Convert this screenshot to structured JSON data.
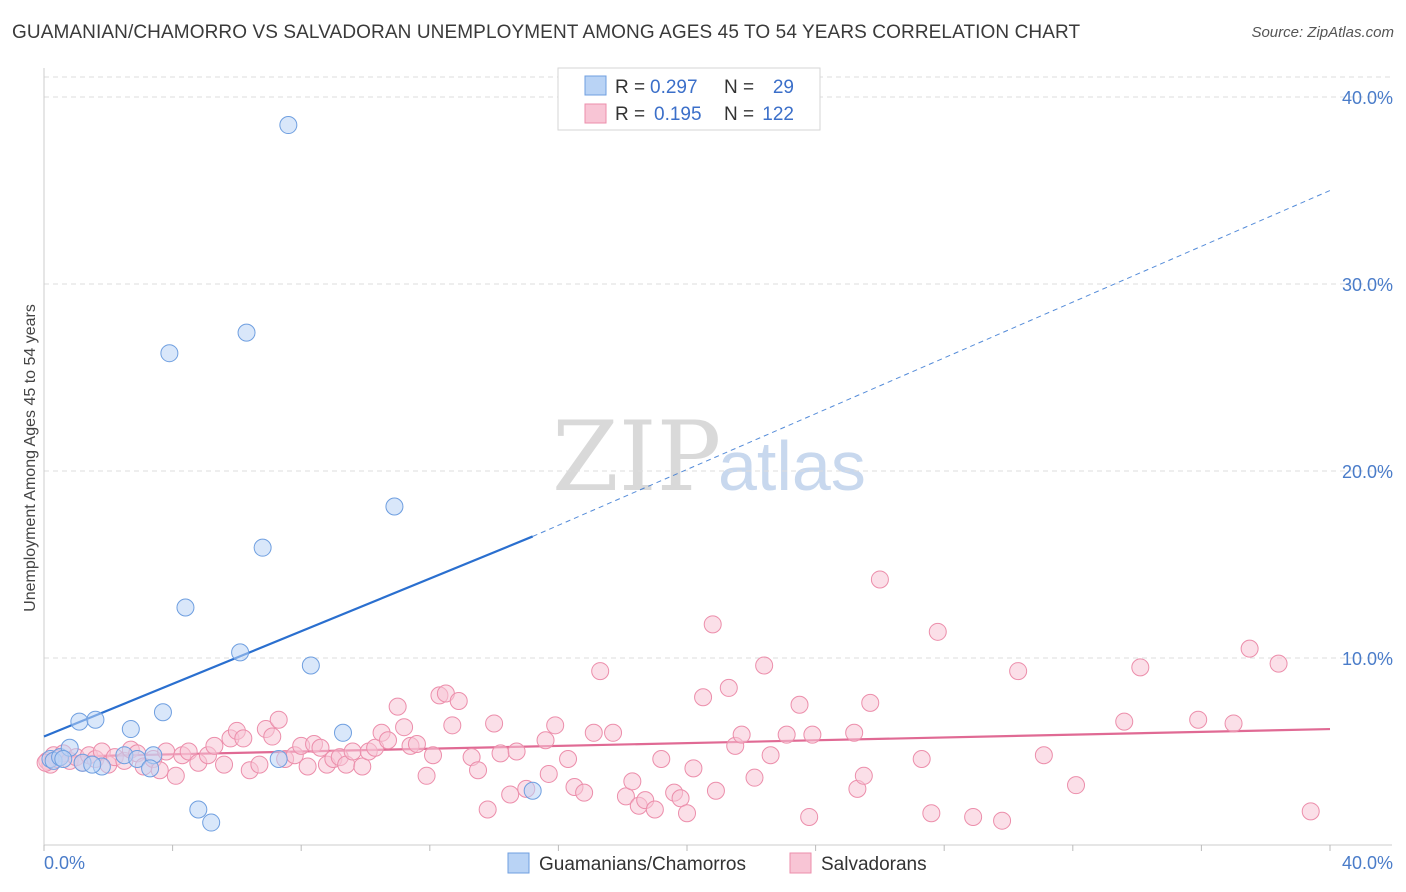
{
  "title": "GUAMANIAN/CHAMORRO VS SALVADORAN UNEMPLOYMENT AMONG AGES 45 TO 54 YEARS CORRELATION CHART",
  "source": "Source: ZipAtlas.com",
  "watermark": {
    "zip": "ZIP",
    "atlas": "atlas"
  },
  "colors": {
    "blue_fill": "#b9d3f5",
    "blue_stroke": "#6f9fe0",
    "blue_line": "#2a6fcf",
    "pink_fill": "#f8c5d5",
    "pink_stroke": "#ec8eab",
    "pink_line": "#e06a94",
    "grid": "#dddddd",
    "tick_text": "#4a7cc9"
  },
  "legend": {
    "rows": [
      {
        "r_label": "R =",
        "r_value": "0.297",
        "n_label": "N =",
        "n_value": "29",
        "series": "blue"
      },
      {
        "r_label": "R =",
        "r_value": "0.195",
        "n_label": "N =",
        "n_value": "122",
        "series": "pink"
      }
    ]
  },
  "chart_data": {
    "type": "scatter",
    "title": "GUAMANIAN/CHAMORRO VS SALVADORAN UNEMPLOYMENT AMONG AGES 45 TO 54 YEARS CORRELATION CHART",
    "xlabel": "",
    "ylabel": "Unemployment Among Ages 45 to 54 years",
    "xlim": [
      0,
      40
    ],
    "ylim": [
      0,
      40
    ],
    "x_tick_labels": [
      "0.0%",
      "40.0%"
    ],
    "y_ticks": [
      10,
      20,
      30,
      40
    ],
    "y_tick_labels": [
      "10.0%",
      "20.0%",
      "30.0%",
      "40.0%"
    ],
    "grid": true,
    "legend_position": "top-center",
    "series": [
      {
        "name": "Guamanians/Chamorros",
        "color": "blue",
        "R": 0.297,
        "N": 29,
        "trend": {
          "x0": 0,
          "y0": 5.8,
          "x1": 15.2,
          "y1": 16.5,
          "dashed_to_x": 40,
          "dashed_to_y": 35.0
        },
        "points": [
          [
            0.2,
            4.6
          ],
          [
            0.3,
            4.5
          ],
          [
            0.5,
            4.7
          ],
          [
            0.8,
            5.2
          ],
          [
            1.1,
            6.6
          ],
          [
            1.6,
            6.7
          ],
          [
            1.2,
            4.4
          ],
          [
            1.8,
            4.2
          ],
          [
            2.7,
            6.2
          ],
          [
            2.5,
            4.8
          ],
          [
            2.9,
            4.6
          ],
          [
            3.4,
            4.8
          ],
          [
            3.3,
            4.1
          ],
          [
            3.7,
            7.1
          ],
          [
            3.9,
            26.3
          ],
          [
            4.4,
            12.7
          ],
          [
            4.8,
            1.9
          ],
          [
            5.2,
            1.2
          ],
          [
            6.1,
            10.3
          ],
          [
            6.3,
            27.4
          ],
          [
            6.8,
            15.9
          ],
          [
            7.3,
            4.6
          ],
          [
            7.6,
            38.5
          ],
          [
            8.3,
            9.6
          ],
          [
            9.3,
            6.0
          ],
          [
            10.9,
            18.1
          ],
          [
            15.2,
            2.9
          ],
          [
            0.6,
            4.6
          ],
          [
            1.5,
            4.3
          ]
        ]
      },
      {
        "name": "Salvadorans",
        "color": "pink",
        "R": 0.195,
        "N": 122,
        "trend": {
          "x0": 0,
          "y0": 4.7,
          "x1": 40,
          "y1": 6.2
        },
        "points": [
          [
            0.1,
            4.5
          ],
          [
            0.2,
            4.3
          ],
          [
            0.3,
            4.8
          ],
          [
            0.4,
            4.6
          ],
          [
            0.6,
            4.9
          ],
          [
            0.8,
            4.5
          ],
          [
            1.0,
            4.7
          ],
          [
            1.2,
            4.4
          ],
          [
            1.4,
            4.8
          ],
          [
            1.6,
            4.6
          ],
          [
            1.8,
            5.0
          ],
          [
            2.0,
            4.3
          ],
          [
            2.2,
            4.7
          ],
          [
            2.5,
            4.5
          ],
          [
            2.7,
            5.1
          ],
          [
            2.9,
            4.9
          ],
          [
            3.1,
            4.2
          ],
          [
            3.4,
            4.6
          ],
          [
            3.6,
            4.0
          ],
          [
            3.8,
            5.0
          ],
          [
            4.1,
            3.7
          ],
          [
            4.3,
            4.8
          ],
          [
            4.5,
            5.0
          ],
          [
            4.8,
            4.4
          ],
          [
            5.1,
            4.8
          ],
          [
            5.3,
            5.3
          ],
          [
            5.6,
            4.3
          ],
          [
            5.8,
            5.7
          ],
          [
            6.0,
            6.1
          ],
          [
            6.2,
            5.7
          ],
          [
            6.4,
            4.0
          ],
          [
            6.7,
            4.3
          ],
          [
            6.9,
            6.2
          ],
          [
            7.1,
            5.8
          ],
          [
            7.3,
            6.7
          ],
          [
            7.5,
            4.6
          ],
          [
            7.8,
            4.8
          ],
          [
            8.0,
            5.3
          ],
          [
            8.2,
            4.2
          ],
          [
            8.4,
            5.4
          ],
          [
            8.6,
            5.2
          ],
          [
            8.8,
            4.3
          ],
          [
            9.0,
            4.6
          ],
          [
            9.2,
            4.7
          ],
          [
            9.4,
            4.3
          ],
          [
            9.6,
            5.0
          ],
          [
            9.9,
            4.2
          ],
          [
            10.1,
            5.0
          ],
          [
            10.3,
            5.2
          ],
          [
            10.5,
            6.0
          ],
          [
            10.7,
            5.6
          ],
          [
            11.0,
            7.4
          ],
          [
            11.2,
            6.3
          ],
          [
            11.4,
            5.3
          ],
          [
            11.6,
            5.4
          ],
          [
            11.9,
            3.7
          ],
          [
            12.1,
            4.8
          ],
          [
            12.3,
            8.0
          ],
          [
            12.5,
            8.1
          ],
          [
            12.7,
            6.4
          ],
          [
            12.9,
            7.7
          ],
          [
            13.3,
            4.7
          ],
          [
            13.5,
            4.0
          ],
          [
            13.8,
            1.9
          ],
          [
            14.0,
            6.5
          ],
          [
            14.2,
            4.9
          ],
          [
            14.5,
            2.7
          ],
          [
            14.7,
            5.0
          ],
          [
            15.0,
            3.0
          ],
          [
            15.6,
            5.6
          ],
          [
            15.7,
            3.8
          ],
          [
            15.9,
            6.4
          ],
          [
            16.3,
            4.6
          ],
          [
            16.5,
            3.1
          ],
          [
            16.8,
            2.8
          ],
          [
            17.1,
            6.0
          ],
          [
            17.3,
            9.3
          ],
          [
            17.7,
            6.0
          ],
          [
            18.1,
            2.6
          ],
          [
            18.3,
            3.4
          ],
          [
            18.5,
            2.1
          ],
          [
            18.7,
            2.4
          ],
          [
            19.0,
            1.9
          ],
          [
            19.2,
            4.6
          ],
          [
            19.6,
            2.8
          ],
          [
            19.8,
            2.5
          ],
          [
            20.0,
            1.7
          ],
          [
            20.2,
            4.1
          ],
          [
            20.5,
            7.9
          ],
          [
            20.8,
            11.8
          ],
          [
            20.9,
            2.9
          ],
          [
            21.3,
            8.4
          ],
          [
            21.5,
            5.3
          ],
          [
            21.7,
            5.9
          ],
          [
            22.1,
            3.6
          ],
          [
            22.4,
            9.6
          ],
          [
            22.6,
            4.8
          ],
          [
            23.1,
            5.9
          ],
          [
            23.5,
            7.5
          ],
          [
            23.8,
            1.5
          ],
          [
            23.9,
            5.9
          ],
          [
            25.2,
            6.0
          ],
          [
            25.3,
            3.0
          ],
          [
            25.5,
            3.7
          ],
          [
            25.7,
            7.6
          ],
          [
            26.0,
            14.2
          ],
          [
            27.3,
            4.6
          ],
          [
            27.6,
            1.7
          ],
          [
            27.8,
            11.4
          ],
          [
            28.9,
            1.5
          ],
          [
            29.8,
            1.3
          ],
          [
            30.3,
            9.3
          ],
          [
            31.1,
            4.8
          ],
          [
            32.1,
            3.2
          ],
          [
            33.6,
            6.6
          ],
          [
            34.1,
            9.5
          ],
          [
            35.9,
            6.7
          ],
          [
            37.5,
            10.5
          ],
          [
            37.0,
            6.5
          ],
          [
            38.4,
            9.7
          ],
          [
            39.4,
            1.8
          ],
          [
            0.05,
            4.4
          ]
        ]
      }
    ]
  },
  "bottom_legend": {
    "items": [
      {
        "label": "Guamanians/Chamorros",
        "series": "blue"
      },
      {
        "label": "Salvadorans",
        "series": "pink"
      }
    ]
  }
}
